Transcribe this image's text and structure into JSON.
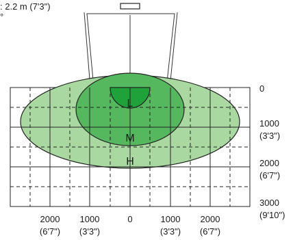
{
  "header": {
    "height_text": ": 2.2 m (7'3\")",
    "degree_mark": "°"
  },
  "zones": {
    "low": {
      "label": "L",
      "color": "#1fa23a"
    },
    "mid": {
      "label": "M",
      "color": "#55b85f"
    },
    "high": {
      "label": "H",
      "color": "#a9d9a0"
    }
  },
  "y_ticks": [
    {
      "value": "0",
      "sub": ""
    },
    {
      "value": "1000",
      "sub": "(3'3\")"
    },
    {
      "value": "2000",
      "sub": "(6'7\")"
    },
    {
      "value": "3000",
      "sub": "(9'10\")"
    }
  ],
  "x_ticks": [
    {
      "value": "2000",
      "sub": "(6'7\")"
    },
    {
      "value": "1000",
      "sub": "(3'3\")"
    },
    {
      "value": "0",
      "sub": ""
    },
    {
      "value": "1000",
      "sub": "(3'3\")"
    },
    {
      "value": "2000",
      "sub": "(6'7\")"
    }
  ]
}
